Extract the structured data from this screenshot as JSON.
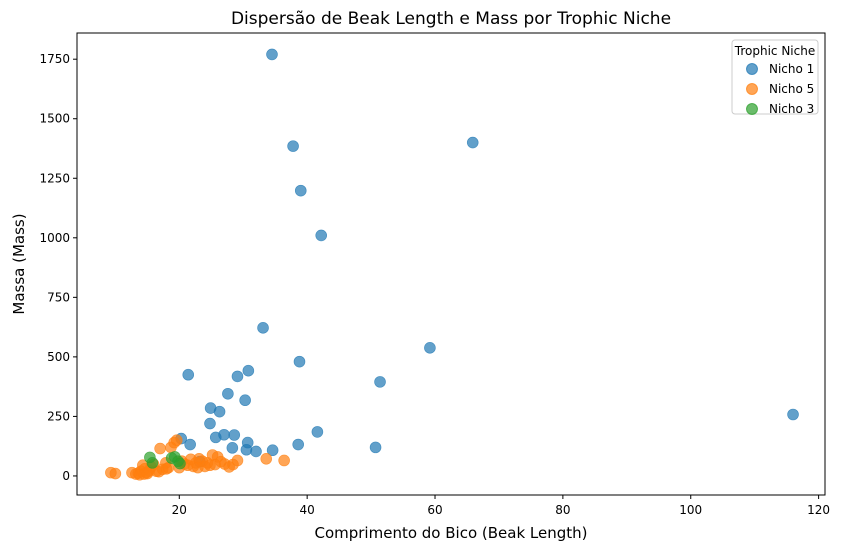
{
  "chart_data": {
    "type": "scatter",
    "title": "Dispersão de Beak Length e Mass por Trophic Niche",
    "xlabel": "Comprimento do Bico (Beak Length)",
    "ylabel": "Massa (Mass)",
    "xlim": [
      4,
      121
    ],
    "ylim": [
      -80,
      1860
    ],
    "xticks": [
      20,
      40,
      60,
      80,
      100,
      120
    ],
    "yticks": [
      0,
      250,
      500,
      750,
      1000,
      1250,
      1500,
      1750
    ],
    "grid": false,
    "legend": {
      "title": "Trophic Niche",
      "placement": "top-right"
    },
    "series": [
      {
        "name": "Nicho 1",
        "color": "#1f77b4",
        "points": [
          [
            34.5,
            1770
          ],
          [
            65.9,
            1400
          ],
          [
            37.8,
            1385
          ],
          [
            39.0,
            1198
          ],
          [
            42.2,
            1010
          ],
          [
            33.1,
            622
          ],
          [
            59.2,
            538
          ],
          [
            38.8,
            480
          ],
          [
            51.4,
            395
          ],
          [
            21.4,
            425
          ],
          [
            30.8,
            442
          ],
          [
            29.1,
            418
          ],
          [
            27.6,
            345
          ],
          [
            30.3,
            318
          ],
          [
            24.9,
            285
          ],
          [
            26.3,
            270
          ],
          [
            116.0,
            258
          ],
          [
            24.8,
            220
          ],
          [
            41.6,
            185
          ],
          [
            20.3,
            157
          ],
          [
            21.7,
            132
          ],
          [
            25.7,
            162
          ],
          [
            27.0,
            173
          ],
          [
            28.6,
            172
          ],
          [
            30.7,
            140
          ],
          [
            38.6,
            132
          ],
          [
            50.7,
            120
          ],
          [
            28.3,
            118
          ],
          [
            30.5,
            110
          ],
          [
            32.0,
            103
          ],
          [
            34.6,
            108
          ],
          [
            23.2,
            60
          ]
        ]
      },
      {
        "name": "Nicho 5",
        "color": "#ff7f0e",
        "points": [
          [
            9.3,
            14
          ],
          [
            10.0,
            10
          ],
          [
            12.6,
            14
          ],
          [
            13.2,
            8
          ],
          [
            13.6,
            12
          ],
          [
            14.0,
            20
          ],
          [
            14.3,
            45
          ],
          [
            14.6,
            30
          ],
          [
            14.9,
            15
          ],
          [
            15.3,
            22
          ],
          [
            15.6,
            38
          ],
          [
            16.0,
            48
          ],
          [
            16.4,
            20
          ],
          [
            17.0,
            115
          ],
          [
            17.4,
            28
          ],
          [
            17.9,
            55
          ],
          [
            18.3,
            35
          ],
          [
            18.7,
            120
          ],
          [
            19.2,
            140
          ],
          [
            19.6,
            150
          ],
          [
            20.0,
            35
          ],
          [
            20.4,
            62
          ],
          [
            20.8,
            50
          ],
          [
            21.3,
            45
          ],
          [
            21.8,
            70
          ],
          [
            22.2,
            40
          ],
          [
            22.6,
            55
          ],
          [
            23.1,
            72
          ],
          [
            23.6,
            62
          ],
          [
            24.0,
            40
          ],
          [
            24.4,
            55
          ],
          [
            24.8,
            45
          ],
          [
            25.2,
            88
          ],
          [
            25.6,
            48
          ],
          [
            26.0,
            80
          ],
          [
            26.5,
            60
          ],
          [
            27.1,
            50
          ],
          [
            27.8,
            38
          ],
          [
            28.4,
            48
          ],
          [
            29.1,
            65
          ],
          [
            33.6,
            72
          ],
          [
            36.4,
            65
          ],
          [
            13.8,
            5
          ],
          [
            14.5,
            8
          ],
          [
            15.0,
            10
          ],
          [
            16.8,
            18
          ],
          [
            18.0,
            30
          ],
          [
            22.9,
            35
          ]
        ]
      },
      {
        "name": "Nicho 3",
        "color": "#2ca02c",
        "points": [
          [
            15.4,
            78
          ],
          [
            15.8,
            55
          ],
          [
            18.8,
            75
          ],
          [
            19.3,
            80
          ],
          [
            19.8,
            62
          ],
          [
            20.1,
            52
          ]
        ]
      }
    ]
  }
}
